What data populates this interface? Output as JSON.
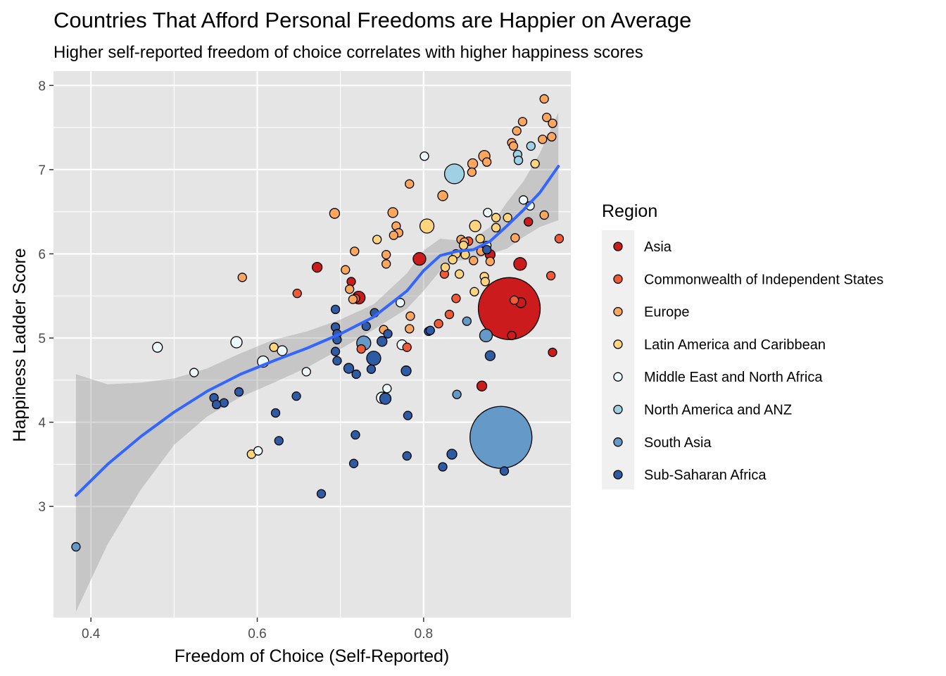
{
  "chart_data": {
    "type": "scatter",
    "title": "Countries That Afford Personal Freedoms are Happier on Average",
    "subtitle": "Higher self-reported freedom of choice correlates with higher happiness scores",
    "xlabel": "Freedom of Choice (Self-Reported)",
    "ylabel": "Happiness Ladder Score",
    "xlim": [
      0.355,
      0.977
    ],
    "ylim": [
      1.68,
      8.17
    ],
    "x_ticks": [
      "0.4",
      "0.6",
      "0.8"
    ],
    "x_tick_values": [
      0.4,
      0.6,
      0.8
    ],
    "y_ticks": [
      "3",
      "4",
      "5",
      "6",
      "7",
      "8"
    ],
    "y_tick_values": [
      3,
      4,
      5,
      6,
      7,
      8
    ],
    "grid": true,
    "legend_position": "right",
    "legend_title": "Region",
    "colors": {
      "panel_background": "#e5e5e5",
      "grid": "#ffffff",
      "smooth_line": "#3366ff",
      "confidence_band": "#999999",
      "legend_key_background": "#f0f0f0"
    },
    "series": [
      {
        "name": "Asia",
        "color": "#cc1b1d",
        "points": [
          {
            "x": 0.903,
            "y": 5.35,
            "size": 44
          },
          {
            "x": 0.795,
            "y": 5.94,
            "size": 9
          },
          {
            "x": 0.722,
            "y": 5.48,
            "size": 9
          },
          {
            "x": 0.916,
            "y": 5.88,
            "size": 9
          },
          {
            "x": 0.672,
            "y": 5.84,
            "size": 7
          },
          {
            "x": 0.87,
            "y": 4.43,
            "size": 7
          },
          {
            "x": 0.955,
            "y": 4.83,
            "size": 6
          },
          {
            "x": 0.88,
            "y": 5.99,
            "size": 7
          },
          {
            "x": 0.926,
            "y": 6.38,
            "size": 6
          },
          {
            "x": 0.713,
            "y": 5.67,
            "size": 6
          },
          {
            "x": 0.906,
            "y": 5.03,
            "size": 6
          },
          {
            "x": 0.917,
            "y": 5.42,
            "size": 7
          }
        ]
      },
      {
        "name": "Commonwealth of Independent States",
        "color": "#f05a37",
        "points": [
          {
            "x": 0.963,
            "y": 6.18,
            "size": 6
          },
          {
            "x": 0.648,
            "y": 5.53,
            "size": 6
          },
          {
            "x": 0.854,
            "y": 6.15,
            "size": 6
          },
          {
            "x": 0.839,
            "y": 5.47,
            "size": 6
          },
          {
            "x": 0.78,
            "y": 4.89,
            "size": 6
          },
          {
            "x": 0.818,
            "y": 5.17,
            "size": 6
          },
          {
            "x": 0.831,
            "y": 5.28,
            "size": 6
          },
          {
            "x": 0.953,
            "y": 5.74,
            "size": 6
          },
          {
            "x": 0.909,
            "y": 5.45,
            "size": 6
          },
          {
            "x": 0.718,
            "y": 5.47,
            "size": 6
          },
          {
            "x": 0.825,
            "y": 5.76,
            "size": 6
          },
          {
            "x": 0.725,
            "y": 4.87,
            "size": 6
          }
        ]
      },
      {
        "name": "Europe",
        "color": "#fca65e",
        "points": [
          {
            "x": 0.945,
            "y": 7.84,
            "size": 6
          },
          {
            "x": 0.948,
            "y": 7.62,
            "size": 6
          },
          {
            "x": 0.919,
            "y": 7.57,
            "size": 6
          },
          {
            "x": 0.955,
            "y": 7.55,
            "size": 6
          },
          {
            "x": 0.912,
            "y": 7.46,
            "size": 6
          },
          {
            "x": 0.954,
            "y": 7.39,
            "size": 6
          },
          {
            "x": 0.943,
            "y": 7.36,
            "size": 6
          },
          {
            "x": 0.906,
            "y": 7.32,
            "size": 6
          },
          {
            "x": 0.908,
            "y": 7.28,
            "size": 6
          },
          {
            "x": 0.873,
            "y": 7.16,
            "size": 8
          },
          {
            "x": 0.876,
            "y": 7.09,
            "size": 6
          },
          {
            "x": 0.859,
            "y": 7.07,
            "size": 7
          },
          {
            "x": 0.858,
            "y": 6.97,
            "size": 6
          },
          {
            "x": 0.783,
            "y": 6.83,
            "size": 6
          },
          {
            "x": 0.823,
            "y": 6.69,
            "size": 7
          },
          {
            "x": 0.693,
            "y": 6.48,
            "size": 7
          },
          {
            "x": 0.763,
            "y": 6.49,
            "size": 7
          },
          {
            "x": 0.767,
            "y": 6.33,
            "size": 6
          },
          {
            "x": 0.77,
            "y": 6.25,
            "size": 6
          },
          {
            "x": 0.764,
            "y": 6.22,
            "size": 6
          },
          {
            "x": 0.845,
            "y": 6.17,
            "size": 6
          },
          {
            "x": 0.849,
            "y": 6.14,
            "size": 6
          },
          {
            "x": 0.717,
            "y": 6.03,
            "size": 6
          },
          {
            "x": 0.755,
            "y": 5.99,
            "size": 6
          },
          {
            "x": 0.755,
            "y": 5.88,
            "size": 6
          },
          {
            "x": 0.86,
            "y": 5.92,
            "size": 6
          },
          {
            "x": 0.91,
            "y": 6.19,
            "size": 6
          },
          {
            "x": 0.945,
            "y": 6.46,
            "size": 6
          },
          {
            "x": 0.706,
            "y": 5.81,
            "size": 6
          },
          {
            "x": 0.582,
            "y": 5.72,
            "size": 6
          },
          {
            "x": 0.711,
            "y": 5.58,
            "size": 6
          },
          {
            "x": 0.715,
            "y": 5.46,
            "size": 6
          },
          {
            "x": 0.784,
            "y": 5.26,
            "size": 6
          },
          {
            "x": 0.783,
            "y": 5.11,
            "size": 6
          },
          {
            "x": 0.752,
            "y": 5.1,
            "size": 6
          },
          {
            "x": 0.869,
            "y": 6.03,
            "size": 6
          },
          {
            "x": 0.88,
            "y": 5.91,
            "size": 6
          }
        ]
      },
      {
        "name": "Latin America and Caribbean",
        "color": "#fed57c",
        "points": [
          {
            "x": 0.934,
            "y": 7.07,
            "size": 6
          },
          {
            "x": 0.804,
            "y": 6.33,
            "size": 10
          },
          {
            "x": 0.862,
            "y": 6.33,
            "size": 8
          },
          {
            "x": 0.887,
            "y": 6.43,
            "size": 6
          },
          {
            "x": 0.901,
            "y": 6.43,
            "size": 6
          },
          {
            "x": 0.868,
            "y": 6.18,
            "size": 6
          },
          {
            "x": 0.744,
            "y": 6.17,
            "size": 6
          },
          {
            "x": 0.887,
            "y": 6.31,
            "size": 6
          },
          {
            "x": 0.848,
            "y": 6.1,
            "size": 6
          },
          {
            "x": 0.839,
            "y": 6.0,
            "size": 6
          },
          {
            "x": 0.835,
            "y": 5.93,
            "size": 6
          },
          {
            "x": 0.826,
            "y": 5.84,
            "size": 6
          },
          {
            "x": 0.843,
            "y": 5.76,
            "size": 6
          },
          {
            "x": 0.873,
            "y": 5.73,
            "size": 6
          },
          {
            "x": 0.874,
            "y": 5.67,
            "size": 6
          },
          {
            "x": 0.861,
            "y": 5.55,
            "size": 6
          },
          {
            "x": 0.85,
            "y": 5.99,
            "size": 6
          },
          {
            "x": 0.62,
            "y": 4.89,
            "size": 6
          },
          {
            "x": 0.593,
            "y": 3.62,
            "size": 6
          }
        ]
      },
      {
        "name": "Middle East and North Africa",
        "color": "#edf8fb",
        "points": [
          {
            "x": 0.801,
            "y": 7.16,
            "size": 6
          },
          {
            "x": 0.92,
            "y": 6.64,
            "size": 6
          },
          {
            "x": 0.928,
            "y": 6.57,
            "size": 6
          },
          {
            "x": 0.877,
            "y": 6.49,
            "size": 6
          },
          {
            "x": 0.876,
            "y": 6.1,
            "size": 6
          },
          {
            "x": 0.772,
            "y": 5.42,
            "size": 6
          },
          {
            "x": 0.48,
            "y": 4.89,
            "size": 7
          },
          {
            "x": 0.575,
            "y": 4.95,
            "size": 8
          },
          {
            "x": 0.63,
            "y": 4.85,
            "size": 7
          },
          {
            "x": 0.607,
            "y": 4.72,
            "size": 8
          },
          {
            "x": 0.524,
            "y": 4.59,
            "size": 6
          },
          {
            "x": 0.659,
            "y": 4.6,
            "size": 6
          },
          {
            "x": 0.774,
            "y": 4.92,
            "size": 7
          },
          {
            "x": 0.756,
            "y": 4.4,
            "size": 6
          },
          {
            "x": 0.75,
            "y": 4.29,
            "size": 8
          },
          {
            "x": 0.601,
            "y": 3.66,
            "size": 6
          }
        ]
      },
      {
        "name": "North America and ANZ",
        "color": "#9fd0e4",
        "points": [
          {
            "x": 0.837,
            "y": 6.95,
            "size": 14
          },
          {
            "x": 0.913,
            "y": 7.18,
            "size": 6
          },
          {
            "x": 0.914,
            "y": 7.11,
            "size": 6
          },
          {
            "x": 0.929,
            "y": 7.28,
            "size": 6
          }
        ]
      },
      {
        "name": "South Asia",
        "color": "#6499c8",
        "points": [
          {
            "x": 0.893,
            "y": 3.82,
            "size": 44
          },
          {
            "x": 0.875,
            "y": 5.03,
            "size": 9
          },
          {
            "x": 0.84,
            "y": 4.33,
            "size": 6
          },
          {
            "x": 0.852,
            "y": 5.2,
            "size": 6
          },
          {
            "x": 0.728,
            "y": 4.94,
            "size": 10
          },
          {
            "x": 0.382,
            "y": 2.52,
            "size": 6
          }
        ]
      },
      {
        "name": "Sub-Saharan Africa",
        "color": "#2e5ba3",
        "points": [
          {
            "x": 0.694,
            "y": 5.34,
            "size": 6
          },
          {
            "x": 0.741,
            "y": 5.3,
            "size": 6
          },
          {
            "x": 0.731,
            "y": 5.14,
            "size": 6
          },
          {
            "x": 0.694,
            "y": 5.13,
            "size": 6
          },
          {
            "x": 0.696,
            "y": 5.05,
            "size": 6
          },
          {
            "x": 0.757,
            "y": 5.05,
            "size": 6
          },
          {
            "x": 0.696,
            "y": 4.98,
            "size": 6
          },
          {
            "x": 0.806,
            "y": 5.08,
            "size": 6
          },
          {
            "x": 0.808,
            "y": 5.09,
            "size": 6
          },
          {
            "x": 0.75,
            "y": 4.96,
            "size": 7
          },
          {
            "x": 0.694,
            "y": 4.84,
            "size": 6
          },
          {
            "x": 0.74,
            "y": 4.76,
            "size": 10
          },
          {
            "x": 0.696,
            "y": 4.73,
            "size": 6
          },
          {
            "x": 0.737,
            "y": 4.63,
            "size": 6
          },
          {
            "x": 0.71,
            "y": 4.64,
            "size": 7
          },
          {
            "x": 0.719,
            "y": 4.57,
            "size": 6
          },
          {
            "x": 0.779,
            "y": 4.61,
            "size": 7
          },
          {
            "x": 0.88,
            "y": 4.79,
            "size": 7
          },
          {
            "x": 0.754,
            "y": 4.28,
            "size": 8
          },
          {
            "x": 0.578,
            "y": 4.36,
            "size": 6
          },
          {
            "x": 0.647,
            "y": 4.31,
            "size": 6
          },
          {
            "x": 0.548,
            "y": 4.29,
            "size": 6
          },
          {
            "x": 0.56,
            "y": 4.23,
            "size": 6
          },
          {
            "x": 0.551,
            "y": 4.21,
            "size": 6
          },
          {
            "x": 0.622,
            "y": 4.11,
            "size": 6
          },
          {
            "x": 0.781,
            "y": 4.08,
            "size": 6
          },
          {
            "x": 0.718,
            "y": 3.85,
            "size": 6
          },
          {
            "x": 0.626,
            "y": 3.78,
            "size": 6
          },
          {
            "x": 0.834,
            "y": 3.62,
            "size": 7
          },
          {
            "x": 0.78,
            "y": 3.6,
            "size": 6
          },
          {
            "x": 0.716,
            "y": 3.51,
            "size": 6
          },
          {
            "x": 0.823,
            "y": 3.47,
            "size": 6
          },
          {
            "x": 0.897,
            "y": 3.42,
            "size": 6
          },
          {
            "x": 0.677,
            "y": 3.15,
            "size": 6
          },
          {
            "x": 0.876,
            "y": 6.05,
            "size": 6
          }
        ]
      }
    ],
    "smooth": {
      "x": [
        0.382,
        0.42,
        0.46,
        0.5,
        0.54,
        0.58,
        0.62,
        0.66,
        0.7,
        0.74,
        0.78,
        0.8,
        0.82,
        0.84,
        0.86,
        0.88,
        0.9,
        0.92,
        0.94,
        0.962
      ],
      "y": [
        3.13,
        3.5,
        3.83,
        4.12,
        4.37,
        4.57,
        4.73,
        4.88,
        5.05,
        5.25,
        5.56,
        5.8,
        5.98,
        6.03,
        6.05,
        6.15,
        6.33,
        6.52,
        6.73,
        7.04
      ],
      "lower": [
        1.75,
        2.55,
        3.2,
        3.73,
        4.07,
        4.3,
        4.47,
        4.65,
        4.87,
        5.1,
        5.35,
        5.56,
        5.8,
        5.92,
        5.93,
        6.0,
        6.06,
        6.2,
        6.32,
        6.4
      ],
      "upper": [
        4.57,
        4.45,
        4.47,
        4.52,
        4.64,
        4.82,
        4.98,
        5.08,
        5.22,
        5.4,
        5.77,
        6.04,
        6.18,
        6.16,
        6.18,
        6.32,
        6.61,
        6.86,
        7.2,
        7.68
      ]
    }
  }
}
